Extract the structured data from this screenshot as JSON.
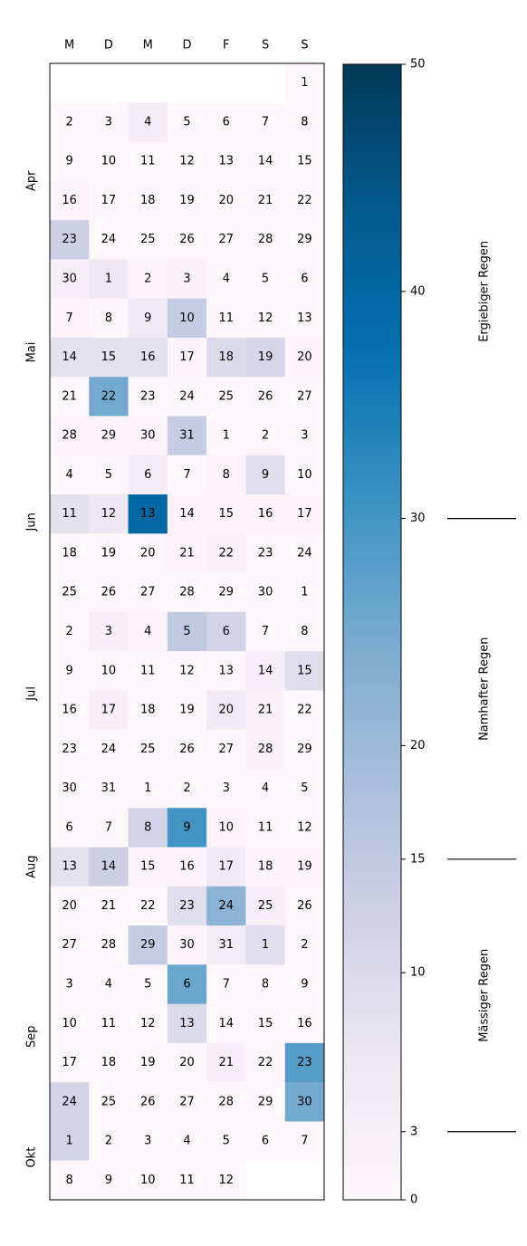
{
  "chart_data": {
    "type": "calendar-heatmap",
    "weekdays": [
      "M",
      "D",
      "M",
      "D",
      "F",
      "S",
      "S"
    ],
    "month_names": [
      "Apr",
      "Mai",
      "Jun",
      "Jul",
      "Aug",
      "Sep",
      "Okt"
    ],
    "days": [
      [
        null,
        null,
        null,
        null,
        null,
        null,
        1
      ],
      [
        2,
        3,
        4,
        5,
        6,
        7,
        8
      ],
      [
        9,
        10,
        11,
        12,
        13,
        14,
        15
      ],
      [
        16,
        17,
        18,
        19,
        20,
        21,
        22
      ],
      [
        23,
        24,
        25,
        26,
        27,
        28,
        29
      ],
      [
        30,
        1,
        2,
        3,
        4,
        5,
        6
      ],
      [
        7,
        8,
        9,
        10,
        11,
        12,
        13
      ],
      [
        14,
        15,
        16,
        17,
        18,
        19,
        20
      ],
      [
        21,
        22,
        23,
        24,
        25,
        26,
        27
      ],
      [
        28,
        29,
        30,
        31,
        1,
        2,
        3
      ],
      [
        4,
        5,
        6,
        7,
        8,
        9,
        10
      ],
      [
        11,
        12,
        13,
        14,
        15,
        16,
        17
      ],
      [
        18,
        19,
        20,
        21,
        22,
        23,
        24
      ],
      [
        25,
        26,
        27,
        28,
        29,
        30,
        1
      ],
      [
        2,
        3,
        4,
        5,
        6,
        7,
        8
      ],
      [
        9,
        10,
        11,
        12,
        13,
        14,
        15
      ],
      [
        16,
        17,
        18,
        19,
        20,
        21,
        22
      ],
      [
        23,
        24,
        25,
        26,
        27,
        28,
        29
      ],
      [
        30,
        31,
        1,
        2,
        3,
        4,
        5
      ],
      [
        6,
        7,
        8,
        9,
        10,
        11,
        12
      ],
      [
        13,
        14,
        15,
        16,
        17,
        18,
        19
      ],
      [
        20,
        21,
        22,
        23,
        24,
        25,
        26
      ],
      [
        27,
        28,
        29,
        30,
        31,
        1,
        2
      ],
      [
        3,
        4,
        5,
        6,
        7,
        8,
        9
      ],
      [
        10,
        11,
        12,
        13,
        14,
        15,
        16
      ],
      [
        17,
        18,
        19,
        20,
        21,
        22,
        23
      ],
      [
        24,
        25,
        26,
        27,
        28,
        29,
        30
      ],
      [
        1,
        2,
        3,
        4,
        5,
        6,
        7
      ],
      [
        8,
        9,
        10,
        11,
        12,
        null,
        null
      ]
    ],
    "values": [
      [
        null,
        null,
        null,
        null,
        null,
        null,
        0
      ],
      [
        0,
        0,
        4,
        0,
        0,
        0,
        0
      ],
      [
        0,
        0,
        0,
        0,
        0,
        0,
        0
      ],
      [
        1,
        0,
        0,
        0,
        0,
        0,
        0
      ],
      [
        13,
        0,
        0,
        0,
        0,
        0,
        0
      ],
      [
        3,
        6,
        1,
        2,
        0,
        0,
        0
      ],
      [
        1,
        0,
        5,
        14,
        0,
        0,
        0
      ],
      [
        8,
        8,
        8,
        1,
        10,
        11,
        1
      ],
      [
        0,
        25,
        0,
        0,
        0,
        0,
        0
      ],
      [
        1,
        1,
        1,
        14,
        0,
        0,
        0
      ],
      [
        0,
        0,
        4,
        0,
        1,
        9,
        0
      ],
      [
        8,
        6,
        40,
        1,
        1,
        1,
        1
      ],
      [
        0,
        0,
        0,
        1,
        2,
        0,
        0
      ],
      [
        0,
        0,
        0,
        0,
        0,
        0,
        0
      ],
      [
        0,
        3,
        1,
        15,
        12,
        0,
        0
      ],
      [
        0,
        0,
        0,
        0,
        0,
        3,
        9
      ],
      [
        0,
        3,
        0,
        0,
        5,
        2,
        0
      ],
      [
        0,
        0,
        0,
        0,
        0,
        2,
        0
      ],
      [
        0,
        0,
        0,
        0,
        0,
        0,
        0
      ],
      [
        0,
        0,
        12,
        30,
        1,
        0,
        0
      ],
      [
        8,
        13,
        1,
        1,
        5,
        1,
        1
      ],
      [
        0,
        0,
        0,
        9,
        22,
        3,
        0
      ],
      [
        0,
        0,
        14,
        1,
        4,
        9,
        0
      ],
      [
        0,
        0,
        0,
        26,
        0,
        0,
        0
      ],
      [
        0,
        0,
        0,
        10,
        0,
        0,
        0
      ],
      [
        0,
        0,
        0,
        0,
        3,
        0,
        28
      ],
      [
        12,
        0,
        0,
        0,
        0,
        0,
        25
      ],
      [
        12,
        0,
        0,
        0,
        0,
        0,
        0
      ],
      [
        0,
        0,
        0,
        0,
        0,
        null,
        null
      ]
    ],
    "colormap": [
      "#fff7fb",
      "#ece7f2",
      "#d0d1e6",
      "#a6bddb",
      "#74a9cf",
      "#3690c0",
      "#0570b0",
      "#045a8d",
      "#023858"
    ],
    "clim": [
      0,
      50
    ],
    "cticks": [
      0,
      3,
      10,
      15,
      20,
      30,
      40,
      50
    ],
    "bands": [
      {
        "label": "Mässiger Regen",
        "range": [
          3,
          15
        ]
      },
      {
        "label": "Namhafter Regen",
        "range": [
          15,
          30
        ]
      },
      {
        "label": "Ergiebiger Regen",
        "range": [
          30,
          50
        ]
      }
    ]
  }
}
